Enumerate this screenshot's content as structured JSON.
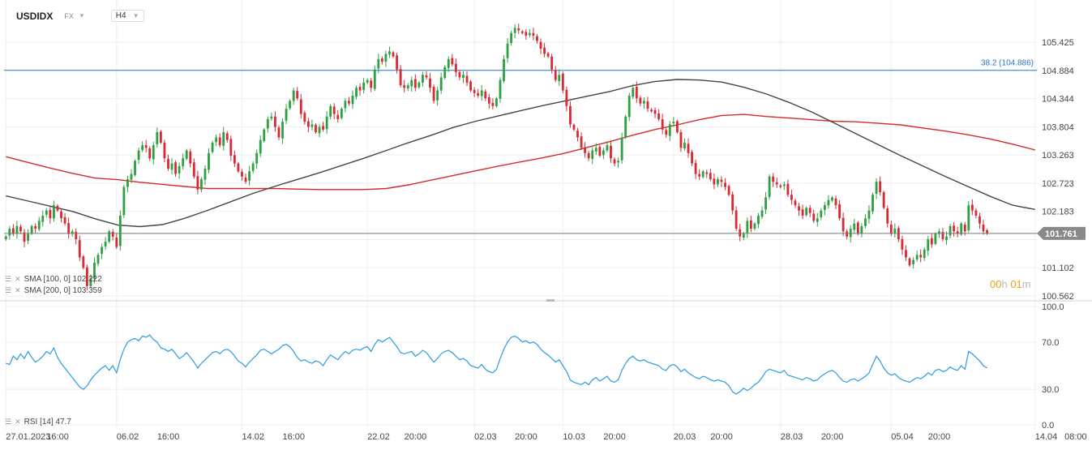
{
  "header": {
    "symbol": "USDIDX",
    "market": "FX",
    "timeframe": "H4"
  },
  "indicators": {
    "sma100": {
      "label": "SMA [100, 0] 102.222",
      "color": "#444444"
    },
    "sma200": {
      "label": "SMA [200, 0] 103.359",
      "color": "#d42b2b"
    },
    "rsi": {
      "label": "RSI [14] 47.7",
      "color": "#2d9be0"
    }
  },
  "countdown": {
    "h_val": "00",
    "h_unit": "h",
    "m_val": "01",
    "m_unit": "m"
  },
  "fib_line": {
    "label": "38.2 (104.886)",
    "value": 104.886,
    "color": "#1f77c4"
  },
  "current_price": {
    "label": "101.761",
    "value": 101.761
  },
  "colors": {
    "up": "#2ea043",
    "down": "#d62b34",
    "grid": "#eeeeee"
  },
  "chart_data": {
    "type": "candlestick",
    "price_axis": {
      "ticks": [
        100.562,
        101.102,
        101.642,
        102.183,
        102.723,
        103.263,
        103.804,
        104.344,
        104.884,
        105.425
      ],
      "labels": [
        "100.562",
        "101.102",
        "",
        "102.183",
        "102.723",
        "103.263",
        "103.804",
        "104.344",
        "104.884",
        "105.425"
      ],
      "range": [
        100.562,
        105.425
      ]
    },
    "rsi_axis": {
      "ticks": [
        0,
        30,
        70,
        100
      ],
      "labels": [
        "0.0",
        "30.0",
        "70.0",
        "100.0"
      ],
      "range": [
        0,
        100
      ]
    },
    "time_axis": {
      "labels": [
        "27.01.2023",
        "16:00",
        "06.02",
        "16:00",
        "14.02",
        "16:00",
        "22.02",
        "20:00",
        "02.03",
        "20:00",
        "10.03",
        "20:00",
        "20.03",
        "20:00",
        "28.03",
        "20:00",
        "05.04",
        "20:00",
        "14.04",
        "08:00"
      ],
      "positions": [
        0,
        11,
        30,
        41,
        64,
        75,
        98,
        108,
        127,
        138,
        151,
        162,
        181,
        191,
        210,
        221,
        240,
        250,
        279,
        287
      ]
    },
    "bar_count": 280,
    "close": [
      101.7,
      101.85,
      101.75,
      101.9,
      101.8,
      101.6,
      101.75,
      101.9,
      101.85,
      102.0,
      102.1,
      102.2,
      102.05,
      102.3,
      102.2,
      102.05,
      101.95,
      101.75,
      101.8,
      101.65,
      101.3,
      101.1,
      100.75,
      100.9,
      101.2,
      101.35,
      101.5,
      101.6,
      101.8,
      101.7,
      101.5,
      102.1,
      102.65,
      102.8,
      102.9,
      103.15,
      103.35,
      103.45,
      103.4,
      103.2,
      103.45,
      103.7,
      103.5,
      103.2,
      103.0,
      103.1,
      102.9,
      103.05,
      103.2,
      103.35,
      103.1,
      102.85,
      102.6,
      102.8,
      103.0,
      103.3,
      103.5,
      103.6,
      103.45,
      103.7,
      103.55,
      103.25,
      103.1,
      102.95,
      102.85,
      102.75,
      102.95,
      103.1,
      103.3,
      103.55,
      103.75,
      103.95,
      104.0,
      103.8,
      103.6,
      103.9,
      104.15,
      104.3,
      104.5,
      104.35,
      104.05,
      103.9,
      103.8,
      103.85,
      103.7,
      103.8,
      103.75,
      104.0,
      104.2,
      104.05,
      103.95,
      104.15,
      104.3,
      104.25,
      104.4,
      104.55,
      104.5,
      104.65,
      104.7,
      104.55,
      104.9,
      105.1,
      105.05,
      105.2,
      105.25,
      105.15,
      104.9,
      104.6,
      104.55,
      104.6,
      104.7,
      104.55,
      104.65,
      104.8,
      104.75,
      104.55,
      104.3,
      104.5,
      104.75,
      104.95,
      105.1,
      105.0,
      104.85,
      104.75,
      104.8,
      104.65,
      104.5,
      104.45,
      104.4,
      104.5,
      104.35,
      104.25,
      104.2,
      104.35,
      104.7,
      105.1,
      105.4,
      105.6,
      105.7,
      105.65,
      105.6,
      105.55,
      105.6,
      105.55,
      105.45,
      105.3,
      105.2,
      105.15,
      104.9,
      104.7,
      104.8,
      104.5,
      104.2,
      103.85,
      103.75,
      103.6,
      103.4,
      103.3,
      103.2,
      103.35,
      103.4,
      103.25,
      103.35,
      103.45,
      103.2,
      103.1,
      103.15,
      103.6,
      104.0,
      104.4,
      104.55,
      104.35,
      104.25,
      104.3,
      104.15,
      104.1,
      104.05,
      103.95,
      103.75,
      103.65,
      103.85,
      103.9,
      103.7,
      103.4,
      103.5,
      103.3,
      103.1,
      102.9,
      102.85,
      102.95,
      102.9,
      102.8,
      102.7,
      102.8,
      102.75,
      102.65,
      102.5,
      102.2,
      101.85,
      101.7,
      101.75,
      102.0,
      101.85,
      101.95,
      102.1,
      102.2,
      102.45,
      102.85,
      102.75,
      102.7,
      102.65,
      102.7,
      102.5,
      102.4,
      102.3,
      102.2,
      102.1,
      102.25,
      102.15,
      102.0,
      102.05,
      102.2,
      102.3,
      102.4,
      102.45,
      102.3,
      102.05,
      101.8,
      101.7,
      101.85,
      101.95,
      101.75,
      101.9,
      102.05,
      102.2,
      102.5,
      102.75,
      102.55,
      102.25,
      101.95,
      101.75,
      101.85,
      101.65,
      101.45,
      101.3,
      101.15,
      101.25,
      101.35,
      101.3,
      101.45,
      101.65,
      101.55,
      101.75,
      101.8,
      101.65,
      101.7,
      101.9,
      101.8,
      101.75,
      101.95,
      101.8,
      102.3,
      102.2,
      102.1,
      101.95,
      101.8,
      101.76
    ],
    "sma100": {
      "from": 0,
      "to": 279,
      "values": [
        102.48,
        102.38,
        102.28,
        102.18,
        102.04,
        101.92,
        101.89,
        101.93,
        102.05,
        102.2,
        102.36,
        102.52,
        102.66,
        102.79,
        102.92,
        103.06,
        103.2,
        103.35,
        103.5,
        103.64,
        103.79,
        103.91,
        104.01,
        104.11,
        104.21,
        104.3,
        104.39,
        104.48,
        104.59,
        104.67,
        104.71,
        104.7,
        104.66,
        104.56,
        104.43,
        104.27,
        104.09,
        103.88,
        103.67,
        103.46,
        103.25,
        103.05,
        102.85,
        102.66,
        102.47,
        102.3,
        102.22
      ]
    },
    "sma200": {
      "from": 0,
      "to": 279,
      "values": [
        103.23,
        103.12,
        103.01,
        102.91,
        102.82,
        102.79,
        102.74,
        102.7,
        102.66,
        102.62,
        102.62,
        102.62,
        102.62,
        102.61,
        102.6,
        102.6,
        102.6,
        102.62,
        102.69,
        102.78,
        102.87,
        102.96,
        103.05,
        103.13,
        103.21,
        103.3,
        103.41,
        103.52,
        103.64,
        103.75,
        103.84,
        103.94,
        104.02,
        104.04,
        104.0,
        103.97,
        103.94,
        103.91,
        103.9,
        103.87,
        103.84,
        103.78,
        103.72,
        103.65,
        103.57,
        103.47,
        103.36
      ]
    },
    "rsi": [
      52,
      51,
      58,
      55,
      60,
      56,
      62,
      57,
      53,
      55,
      58,
      62,
      60,
      65,
      57,
      52,
      48,
      44,
      40,
      36,
      32,
      30,
      33,
      38,
      42,
      45,
      48,
      50,
      46,
      50,
      44,
      55,
      64,
      70,
      72,
      73,
      71,
      75,
      74,
      76,
      72,
      70,
      65,
      64,
      62,
      64,
      60,
      56,
      58,
      61,
      57,
      53,
      48,
      52,
      55,
      58,
      61,
      62,
      60,
      63,
      64,
      62,
      58,
      54,
      52,
      49,
      53,
      56,
      59,
      63,
      64,
      62,
      60,
      62,
      64,
      67,
      68,
      66,
      62,
      57,
      54,
      55,
      53,
      52,
      54,
      53,
      50,
      55,
      59,
      57,
      55,
      59,
      62,
      60,
      63,
      64,
      63,
      65,
      66,
      62,
      68,
      72,
      70,
      72,
      74,
      70,
      66,
      61,
      60,
      61,
      62,
      58,
      60,
      63,
      61,
      57,
      53,
      56,
      60,
      62,
      63,
      61,
      58,
      55,
      56,
      54,
      50,
      49,
      48,
      51,
      47,
      45,
      44,
      47,
      56,
      64,
      70,
      74,
      75,
      73,
      70,
      71,
      69,
      70,
      68,
      64,
      61,
      59,
      56,
      53,
      55,
      50,
      45,
      38,
      36,
      35,
      34,
      36,
      34,
      38,
      40,
      37,
      39,
      41,
      37,
      36,
      38,
      46,
      52,
      56,
      58,
      55,
      54,
      55,
      53,
      52,
      51,
      50,
      47,
      46,
      50,
      51,
      49,
      45,
      47,
      44,
      42,
      40,
      39,
      41,
      40,
      38,
      37,
      38,
      37,
      36,
      33,
      28,
      26,
      28,
      31,
      29,
      31,
      34,
      36,
      40,
      45,
      47,
      46,
      45,
      44,
      46,
      42,
      41,
      40,
      39,
      38,
      40,
      39,
      37,
      38,
      41,
      43,
      45,
      46,
      44,
      40,
      37,
      36,
      38,
      39,
      37,
      39,
      41,
      44,
      51,
      58,
      54,
      48,
      44,
      42,
      43,
      40,
      38,
      37,
      36,
      38,
      40,
      39,
      41,
      44,
      42,
      46,
      47,
      45,
      46,
      49,
      47,
      46,
      50,
      47,
      62,
      60,
      57,
      54,
      50,
      48
    ]
  }
}
